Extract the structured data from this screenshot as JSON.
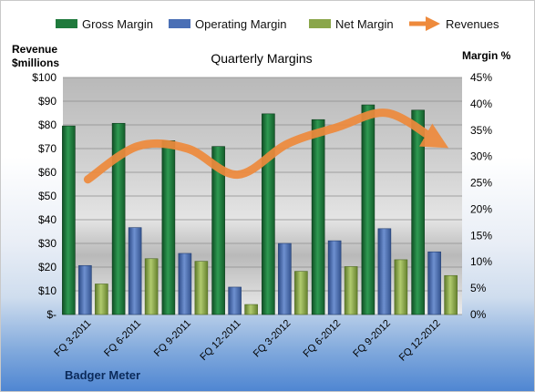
{
  "chart_data": {
    "type": "bar",
    "title": "Quarterly Margins",
    "categories": [
      "FQ 3-2011",
      "FQ 6-2011",
      "FQ 9-2011",
      "FQ 12-2011",
      "FQ 3-2012",
      "FQ 6-2012",
      "FQ 9-2012",
      "FQ 12-2012"
    ],
    "series": [
      {
        "name": "Gross Margin",
        "type": "bar",
        "axis": "right",
        "values": [
          35.8,
          36.3,
          33.0,
          31.9,
          38.1,
          37.0,
          39.8,
          38.8
        ],
        "color": "#1f7a3c"
      },
      {
        "name": "Operating Margin",
        "type": "bar",
        "axis": "right",
        "values": [
          9.3,
          16.5,
          11.6,
          5.2,
          13.5,
          14.0,
          16.3,
          11.9
        ],
        "color": "#4a6fb5"
      },
      {
        "name": "Net Margin",
        "type": "bar",
        "axis": "right",
        "values": [
          5.8,
          10.6,
          10.1,
          1.9,
          8.2,
          9.1,
          10.4,
          7.4
        ],
        "color": "#8aa64a"
      },
      {
        "name": "Revenues",
        "type": "line",
        "axis": "left",
        "values": [
          57,
          71,
          70,
          59,
          72,
          79,
          85,
          73
        ],
        "color": "#ee8a3c"
      }
    ],
    "ylabel_left": "Revenue $millions",
    "ylabel_right": "Margin %",
    "ylim_left": [
      0,
      100
    ],
    "ylim_right": [
      0,
      45
    ],
    "yticks_left": [
      "$-",
      "$10",
      "$20",
      "$30",
      "$40",
      "$50",
      "$60",
      "$70",
      "$80",
      "$90",
      "$100"
    ],
    "yticks_right": [
      "0%",
      "5%",
      "10%",
      "15%",
      "20%",
      "25%",
      "30%",
      "35%",
      "40%",
      "45%"
    ],
    "legend_position": "top",
    "grid": true
  },
  "axis_title_left_line1": "Revenue",
  "axis_title_left_line2": "$millions",
  "axis_title_right": "Margin %",
  "footer_label": "Badger Meter"
}
